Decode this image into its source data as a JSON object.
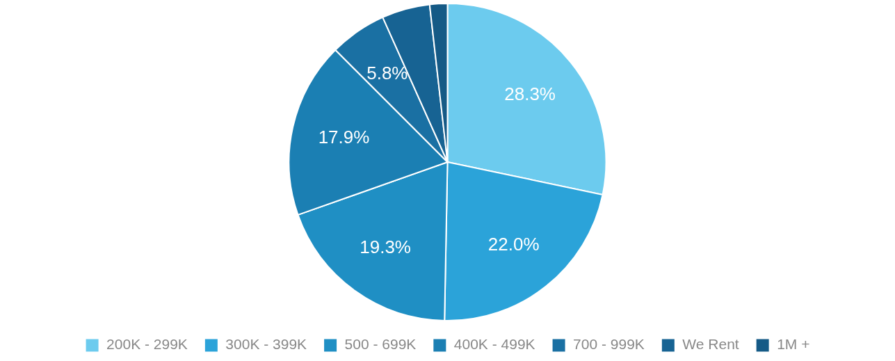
{
  "chart_data": {
    "type": "pie",
    "categories": [
      "200K - 299K",
      "300K - 399K",
      "500 - 699K",
      "400K - 499K",
      "700 - 999K",
      "We Rent",
      "1M +"
    ],
    "values": [
      28.3,
      22.0,
      19.3,
      17.9,
      5.8,
      4.9,
      1.8
    ],
    "value_labels": [
      "28.3%",
      "22.0%",
      "19.3%",
      "17.9%",
      "5.8%",
      null,
      null
    ],
    "colors": [
      "#6ccbee",
      "#2ba3d9",
      "#1f8fc4",
      "#1b7fb3",
      "#1a70a3",
      "#176393",
      "#155a86"
    ],
    "legend": "bottom"
  }
}
